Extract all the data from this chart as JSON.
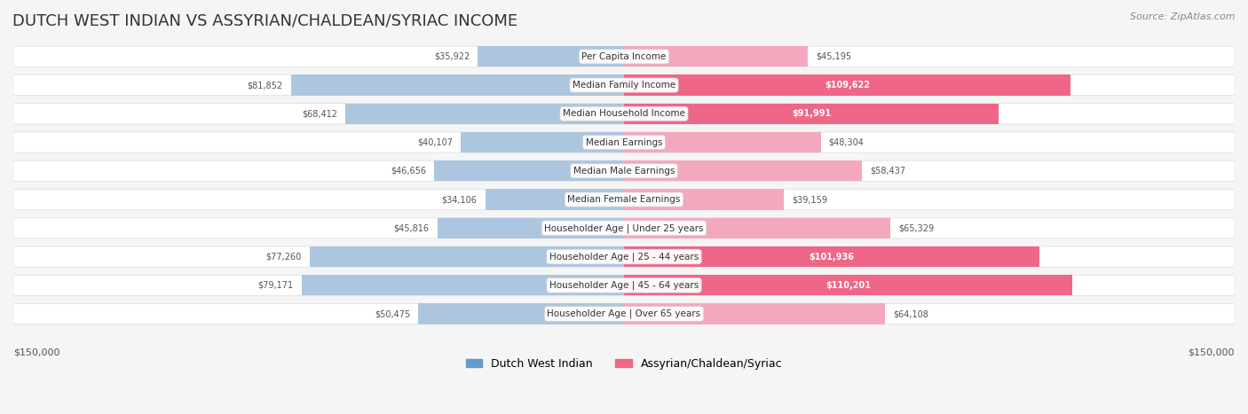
{
  "title": "DUTCH WEST INDIAN VS ASSYRIAN/CHALDEAN/SYRIAC INCOME",
  "source": "Source: ZipAtlas.com",
  "categories": [
    "Per Capita Income",
    "Median Family Income",
    "Median Household Income",
    "Median Earnings",
    "Median Male Earnings",
    "Median Female Earnings",
    "Householder Age | Under 25 years",
    "Householder Age | 25 - 44 years",
    "Householder Age | 45 - 64 years",
    "Householder Age | Over 65 years"
  ],
  "dutch_values": [
    35922,
    81852,
    68412,
    40107,
    46656,
    34106,
    45816,
    77260,
    79171,
    50475
  ],
  "assyrian_values": [
    45195,
    109622,
    91991,
    48304,
    58437,
    39159,
    65329,
    101936,
    110201,
    64108
  ],
  "dutch_labels": [
    "$35,922",
    "$81,852",
    "$68,412",
    "$40,107",
    "$46,656",
    "$34,106",
    "$45,816",
    "$77,260",
    "$79,171",
    "$50,475"
  ],
  "assyrian_labels": [
    "$45,195",
    "$109,622",
    "$91,991",
    "$48,304",
    "$58,437",
    "$39,159",
    "$65,329",
    "$101,936",
    "$110,201",
    "$64,108"
  ],
  "max_value": 150000,
  "dutch_color_strong": "#6699cc",
  "dutch_color_light": "#adc6e0",
  "assyrian_color_strong": "#ee6688",
  "assyrian_color_light": "#f4a8be",
  "bg_color": "#f5f5f5",
  "row_bg": "#ffffff",
  "label_threshold": 90000,
  "legend_dutch": "Dutch West Indian",
  "legend_assyrian": "Assyrian/Chaldean/Syriac"
}
